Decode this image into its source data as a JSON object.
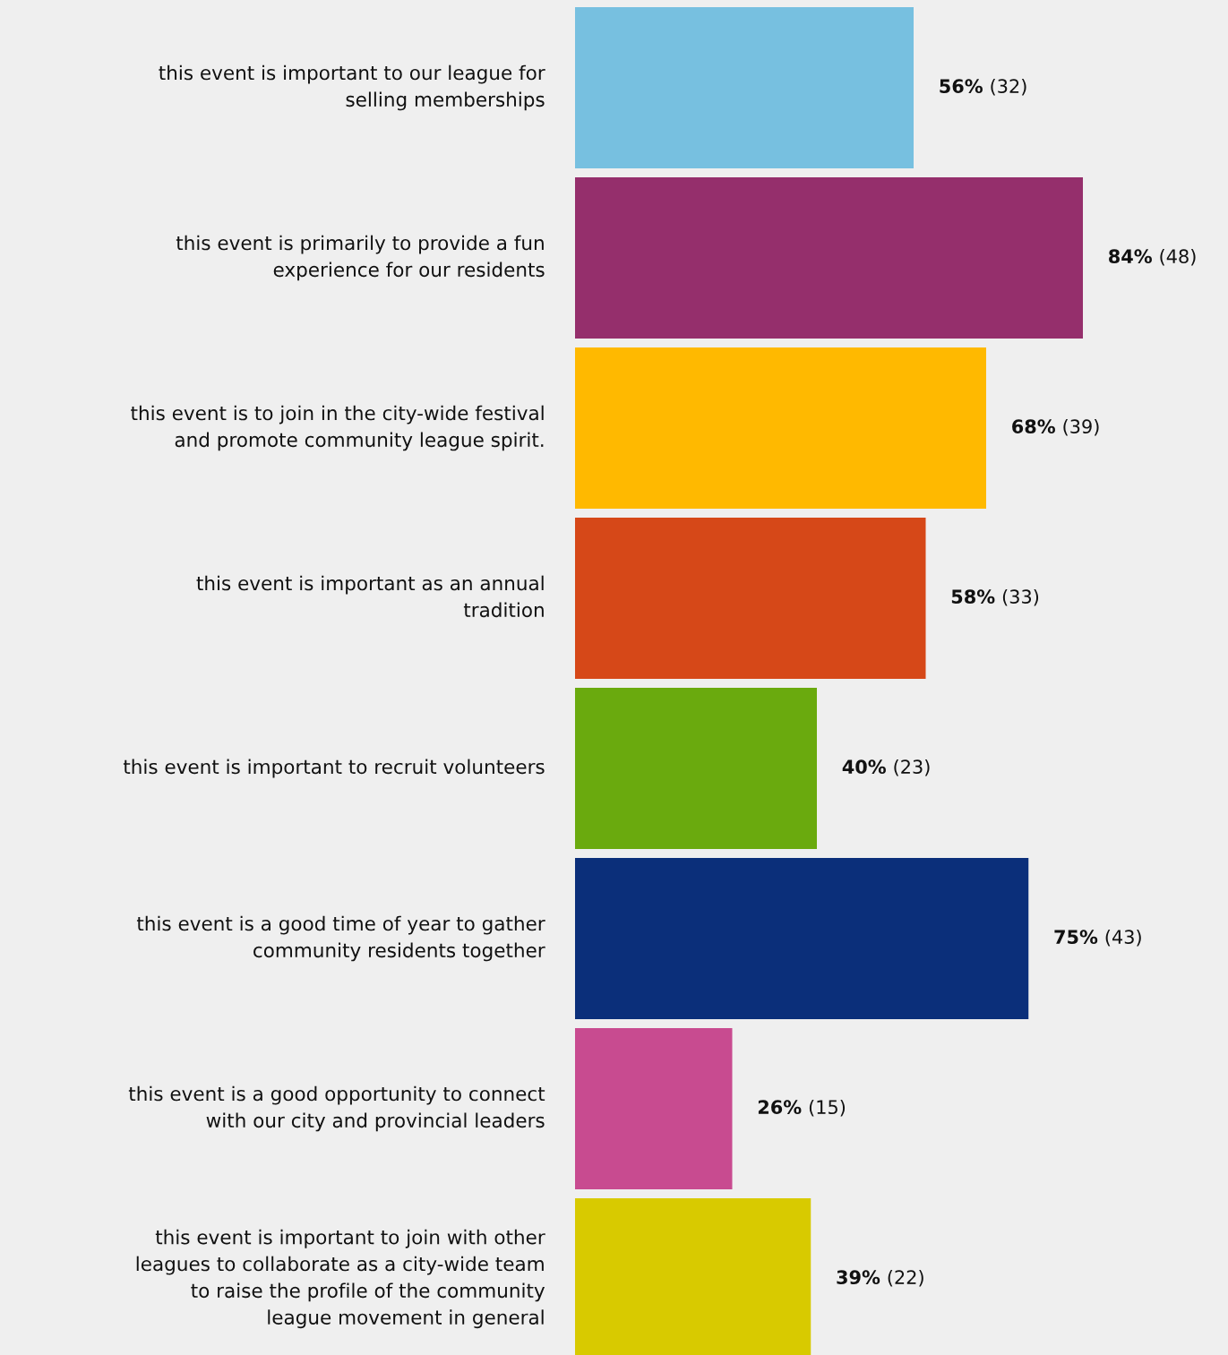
{
  "chart_data": {
    "type": "bar",
    "orientation": "horizontal",
    "categories": [
      "this event is important to our league for\nselling memberships",
      "this event is primarily to provide a fun\nexperience for our residents",
      "this event is to join in the city-wide festival\nand promote community league spirit.",
      "this event is important as an annual\ntradition",
      "this event is important to recruit volunteers",
      "this event is a good time of year to gather\ncommunity residents together",
      "this event is a good opportunity to connect\nwith our city and provincial leaders",
      "this event is important to join with other\nleagues to collaborate as a city-wide team\nto raise the profile of the community\nleague movement in general"
    ],
    "values": [
      56,
      84,
      68,
      58,
      40,
      75,
      26,
      39
    ],
    "colors": [
      "#77c0e0",
      "#952f6c",
      "#ffb900",
      "#d64818",
      "#6aaa0e",
      "#0b2f7a",
      "#c84b90",
      "#d8ca00"
    ],
    "value_labels": [
      "56% (32)",
      "84% (48)",
      "68% (39)",
      "58% (33)",
      "40% (23)",
      "75% (43)",
      "26% (15)",
      "39% (22)"
    ],
    "legend": false
  }
}
